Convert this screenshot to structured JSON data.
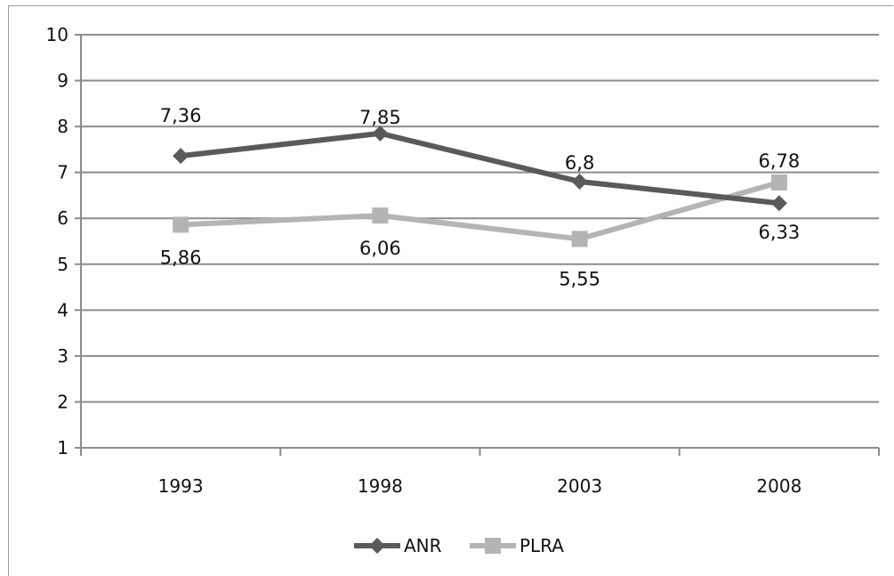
{
  "chart_data": {
    "type": "line",
    "categories": [
      "1993",
      "1998",
      "2003",
      "2008"
    ],
    "series": [
      {
        "name": "ANR",
        "values": [
          7.36,
          7.85,
          6.8,
          6.33
        ],
        "labels": [
          "7,36",
          "7,85",
          "6,8",
          "6,33"
        ],
        "color": "#5a5a5a",
        "marker": "diamond"
      },
      {
        "name": "PLRA",
        "values": [
          5.86,
          6.06,
          5.55,
          6.78
        ],
        "labels": [
          "5,86",
          "6,06",
          "5,55",
          "6,78"
        ],
        "color": "#b4b4b4",
        "marker": "square"
      }
    ],
    "ylim": [
      1,
      10
    ],
    "yticks": [
      "1",
      "2",
      "3",
      "4",
      "5",
      "6",
      "7",
      "8",
      "9",
      "10"
    ],
    "grid": true,
    "legend_position": "bottom"
  }
}
